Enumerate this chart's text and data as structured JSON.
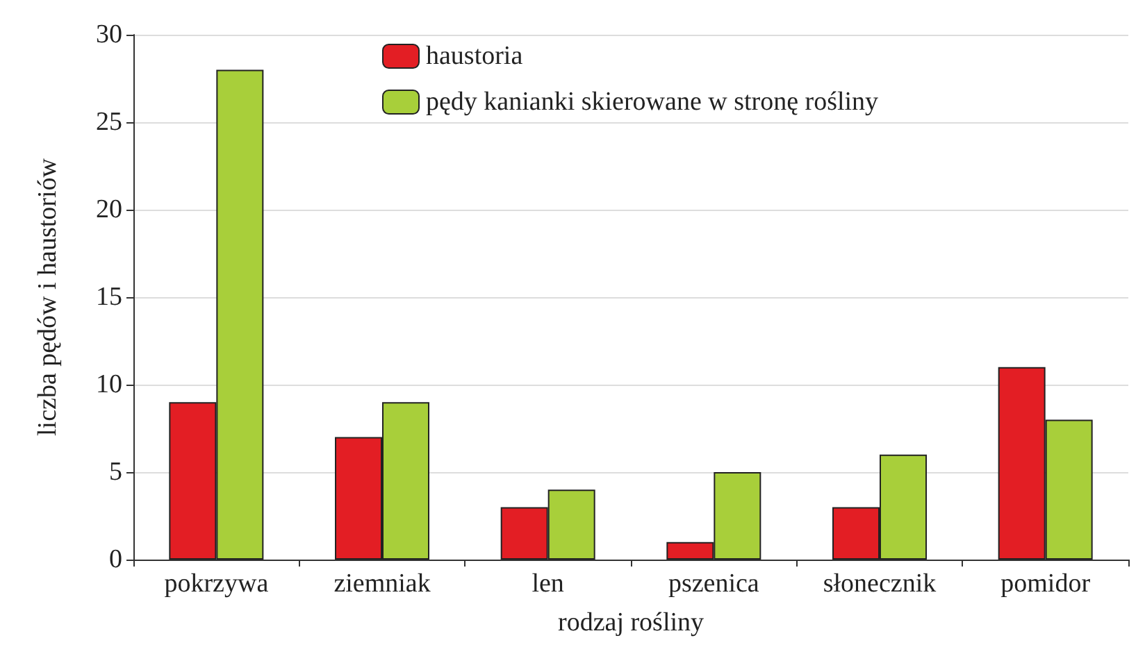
{
  "chart_data": {
    "type": "bar",
    "xlabel": "rodzaj rośliny",
    "ylabel": "liczba pędów i haustoriów",
    "categories": [
      "pokrzywa",
      "ziemniak",
      "len",
      "pszenica",
      "słonecznik",
      "pomidor"
    ],
    "series": [
      {
        "name": "haustoria",
        "color": "#e31e24",
        "values": [
          9,
          7,
          3,
          1,
          3,
          11
        ]
      },
      {
        "name": "pędy kanianki skierowane w stronę rośliny",
        "color": "#a8cf3a",
        "values": [
          28,
          9,
          4,
          5,
          6,
          8
        ]
      }
    ],
    "ylim": [
      0,
      30
    ],
    "yticks": [
      0,
      5,
      10,
      15,
      20,
      25,
      30
    ],
    "grid": "y",
    "legend": "top"
  }
}
